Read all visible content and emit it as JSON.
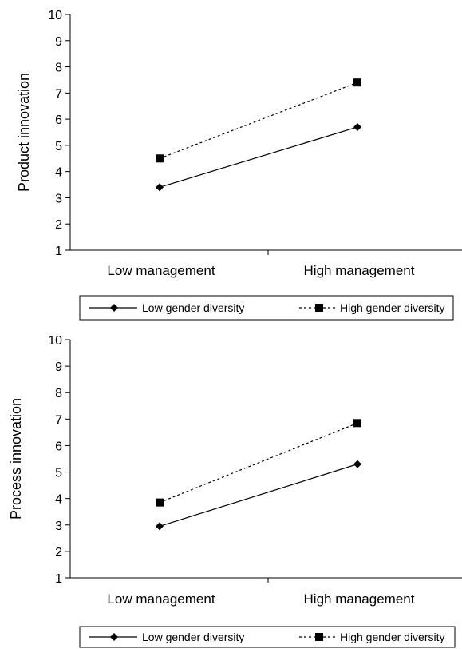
{
  "chart_data": [
    {
      "type": "line",
      "title": "",
      "xlabel": "",
      "ylabel": "Product innovation",
      "ylim": [
        1,
        10
      ],
      "yticks": [
        "1",
        "2",
        "3",
        "4",
        "5",
        "6",
        "7",
        "8",
        "9",
        "10"
      ],
      "categories": [
        "Low management",
        "High management"
      ],
      "grid": false,
      "legend_position": "bottom",
      "series": [
        {
          "name": "Low gender diversity",
          "values": [
            3.4,
            5.7
          ],
          "line_style": "solid",
          "marker": "diamond",
          "color": "#000000"
        },
        {
          "name": "High gender diversity",
          "values": [
            4.5,
            7.4
          ],
          "line_style": "dotted",
          "marker": "square",
          "color": "#000000"
        }
      ]
    },
    {
      "type": "line",
      "title": "",
      "xlabel": "",
      "ylabel": "Process innovation",
      "ylim": [
        1,
        10
      ],
      "yticks": [
        "1",
        "2",
        "3",
        "4",
        "5",
        "6",
        "7",
        "8",
        "9",
        "10"
      ],
      "categories": [
        "Low management",
        "High management"
      ],
      "grid": false,
      "legend_position": "bottom",
      "series": [
        {
          "name": "Low gender diversity",
          "values": [
            2.95,
            5.3
          ],
          "line_style": "solid",
          "marker": "diamond",
          "color": "#000000"
        },
        {
          "name": "High gender diversity",
          "values": [
            3.85,
            6.85
          ],
          "line_style": "dotted",
          "marker": "square",
          "color": "#000000"
        }
      ]
    }
  ]
}
